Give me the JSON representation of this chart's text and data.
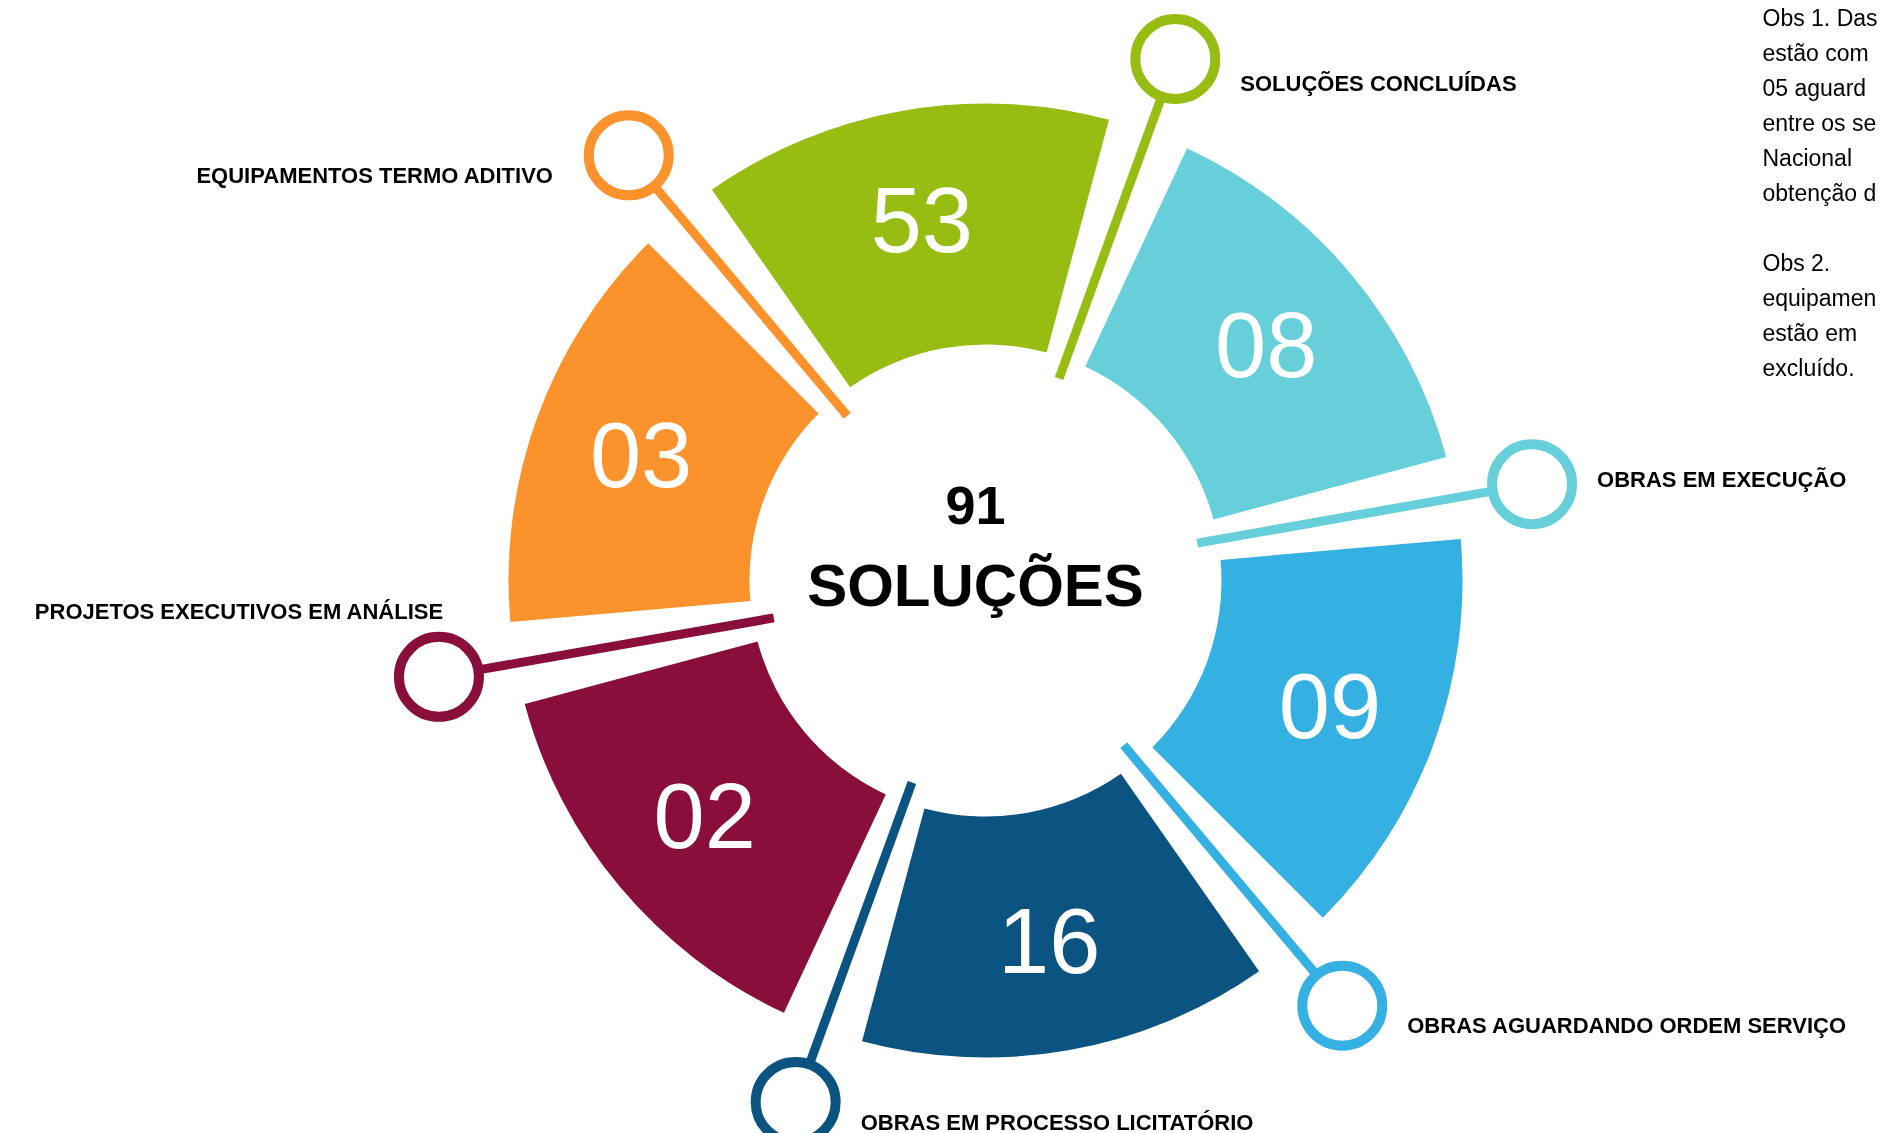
{
  "chart_data": {
    "type": "other",
    "title": "91 SOLUÇÕES",
    "categories": [
      "SOLUÇÕES CONCLUÍDAS",
      "OBRAS EM EXECUÇÃO",
      "OBRAS AGUARDANDO ORDEM SERVIÇO",
      "OBRAS EM PROCESSO LICITATÓRIO",
      "PROJETOS EXECUTIVOS EM ANÁLISE",
      "EQUIPAMENTOS TERMO ADITIVO"
    ],
    "values": [
      53,
      8,
      9,
      16,
      2,
      3
    ],
    "value_labels": [
      "53",
      "08",
      "09",
      "16",
      "02",
      "03"
    ],
    "colors": [
      "#97bd12",
      "#66cfda",
      "#35b0e2",
      "#0b5381",
      "#8a0e3b",
      "#fb922b"
    ],
    "annotations": [
      "Obs 1. Das",
      "estão com",
      "05  aguard",
      "entre os se",
      "Nacional",
      "obtenção d",
      "Obs  2.",
      "equipamen",
      "estão  em",
      "excluído."
    ]
  }
}
